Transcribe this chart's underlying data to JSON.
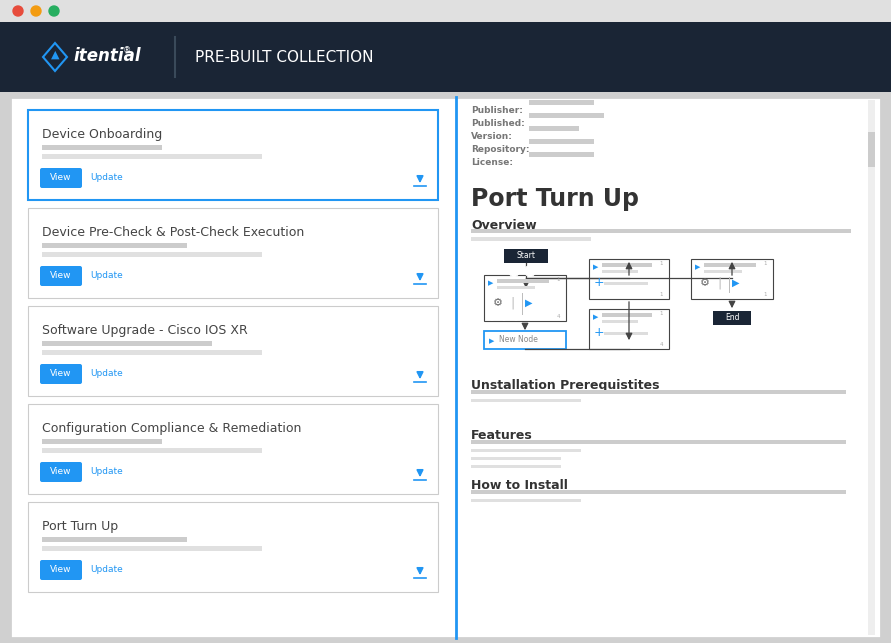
{
  "bg_color": "#d0d0d0",
  "header_color": "#1a2535",
  "header_text": "PRE-BUILT COLLECTION",
  "header_text_color": "#ffffff",
  "logo_text": "itential",
  "content_bg": "#f5f5f5",
  "panel_bg": "#ffffff",
  "border_color_active": "#2196f3",
  "border_color_inactive": "#cccccc",
  "left_items": [
    {
      "title": "Device Onboarding",
      "active": true
    },
    {
      "title": "Device Pre-Check & Post-Check Execution",
      "active": false
    },
    {
      "title": "Software Upgrade - Cisco IOS XR",
      "active": false
    },
    {
      "title": "Configuration Compliance & Remediation",
      "active": false
    },
    {
      "title": "Port Turn Up",
      "active": false
    }
  ],
  "detail_title": "Port Turn Up",
  "detail_subtitle": "Overview",
  "section_labels": [
    "Publisher:",
    "Published:",
    "Version:",
    "Repository:",
    "License:"
  ],
  "section_headers": [
    "Unstallation Prerequistites",
    "Features",
    "How to Install"
  ],
  "blue_color": "#2196f3",
  "dark_navy": "#1a2535",
  "gray_text": "#888888",
  "gray_bar_color": "#cccccc",
  "gray_bar_light": "#e0e0e0",
  "view_btn_color": "#2196f3",
  "view_btn_text": "#ffffff",
  "update_text_color": "#2196f3",
  "scrollbar_color": "#cccccc",
  "divider_color": "#2196f3",
  "window_chrome_color": "#e0e0e0",
  "dot_colors": [
    "#e74c3c",
    "#f39c12",
    "#27ae60"
  ]
}
